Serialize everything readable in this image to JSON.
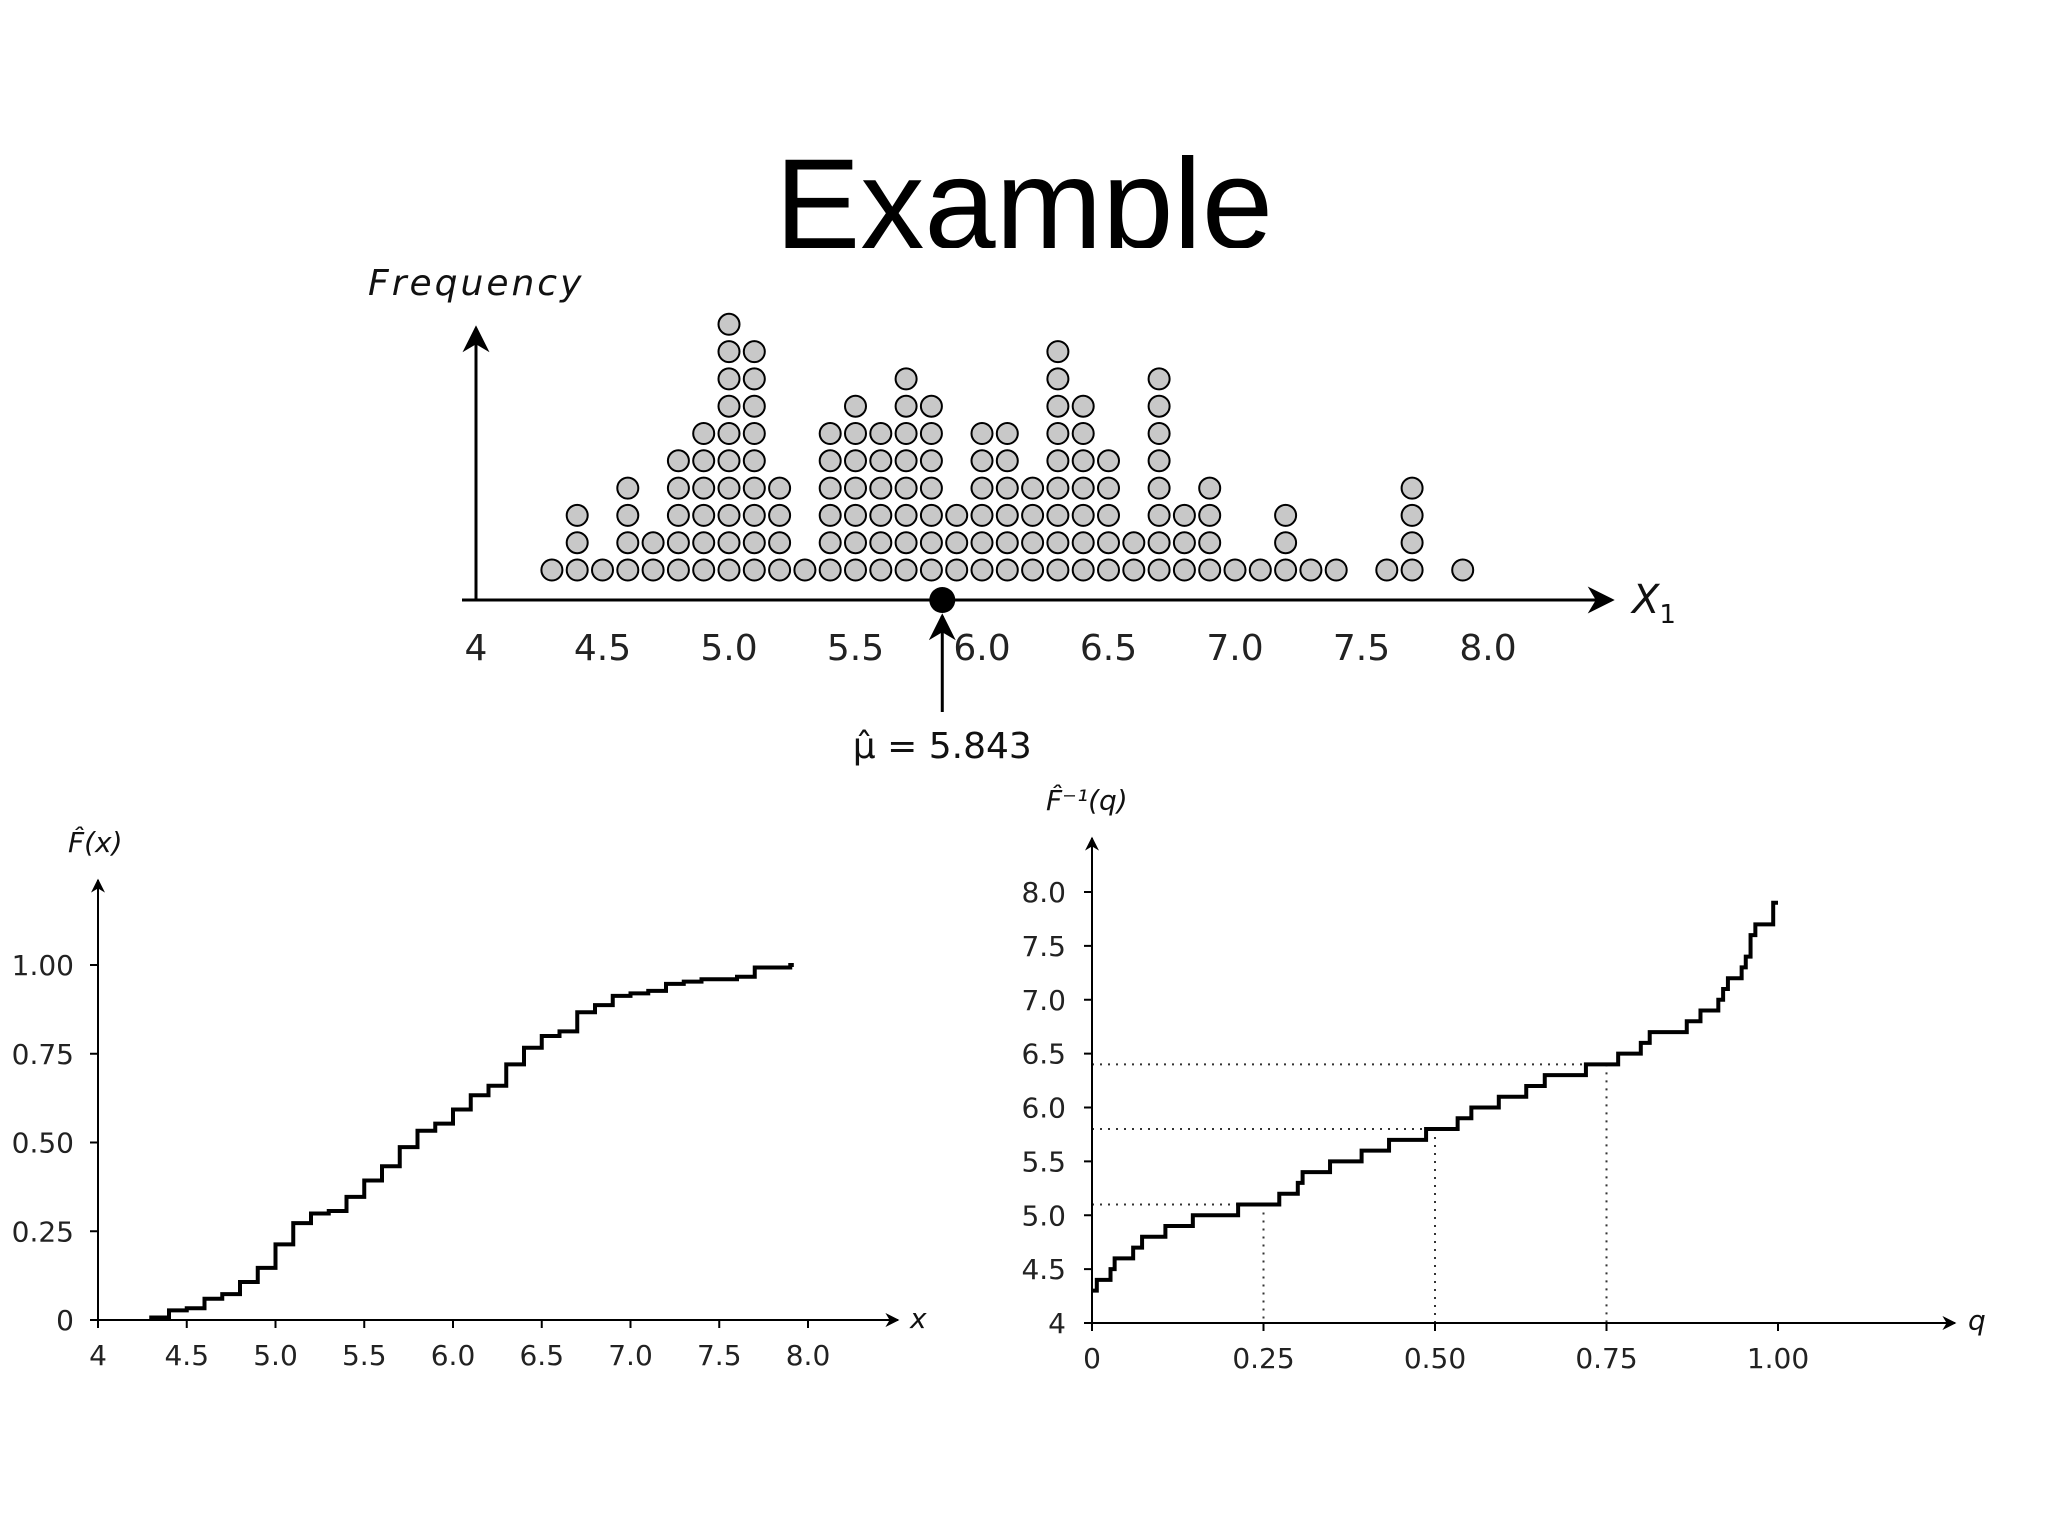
{
  "slide": {
    "title": "Example"
  },
  "colors": {
    "dot_fill": "#c8c8c8",
    "stroke": "#000000",
    "guide": "#333333"
  },
  "chart_data": [
    {
      "type": "scatter",
      "subtype": "dot plot",
      "title": "",
      "ylabel": "Frequency",
      "xlabel": "X",
      "xlabel_subscript": "1",
      "xlim": [
        4,
        8.5
      ],
      "xticks": [
        "4",
        "4.5",
        "5.0",
        "5.5",
        "6.0",
        "6.5",
        "7.0",
        "7.5",
        "8.0"
      ],
      "xtick_values": [
        4,
        4.5,
        5.0,
        5.5,
        6.0,
        6.5,
        7.0,
        7.5,
        8.0
      ],
      "grid": false,
      "stacks": [
        {
          "x": 4.3,
          "count": 1
        },
        {
          "x": 4.4,
          "count": 3
        },
        {
          "x": 4.5,
          "count": 1
        },
        {
          "x": 4.6,
          "count": 4
        },
        {
          "x": 4.7,
          "count": 2
        },
        {
          "x": 4.8,
          "count": 5
        },
        {
          "x": 4.9,
          "count": 6
        },
        {
          "x": 5.0,
          "count": 10
        },
        {
          "x": 5.1,
          "count": 9
        },
        {
          "x": 5.2,
          "count": 4
        },
        {
          "x": 5.3,
          "count": 1
        },
        {
          "x": 5.4,
          "count": 6
        },
        {
          "x": 5.5,
          "count": 7
        },
        {
          "x": 5.6,
          "count": 6
        },
        {
          "x": 5.7,
          "count": 8
        },
        {
          "x": 5.8,
          "count": 7
        },
        {
          "x": 5.9,
          "count": 3
        },
        {
          "x": 6.0,
          "count": 6
        },
        {
          "x": 6.1,
          "count": 6
        },
        {
          "x": 6.2,
          "count": 4
        },
        {
          "x": 6.3,
          "count": 9
        },
        {
          "x": 6.4,
          "count": 7
        },
        {
          "x": 6.5,
          "count": 5
        },
        {
          "x": 6.6,
          "count": 2
        },
        {
          "x": 6.7,
          "count": 8
        },
        {
          "x": 6.8,
          "count": 3
        },
        {
          "x": 6.9,
          "count": 4
        },
        {
          "x": 7.0,
          "count": 1
        },
        {
          "x": 7.1,
          "count": 1
        },
        {
          "x": 7.2,
          "count": 3
        },
        {
          "x": 7.3,
          "count": 1
        },
        {
          "x": 7.4,
          "count": 1
        },
        {
          "x": 7.6,
          "count": 1
        },
        {
          "x": 7.7,
          "count": 4
        },
        {
          "x": 7.9,
          "count": 1
        }
      ],
      "mean": {
        "value": 5.843,
        "label": "μ̂ = 5.843"
      }
    },
    {
      "type": "line",
      "subtype": "step (empirical CDF)",
      "title": "",
      "ylabel": "F̂(x)",
      "xlabel": "x",
      "xlim": [
        4,
        8.5
      ],
      "ylim": [
        0,
        1.2
      ],
      "xticks": [
        "4",
        "4.5",
        "5.0",
        "5.5",
        "6.0",
        "6.5",
        "7.0",
        "7.5",
        "8.0"
      ],
      "xtick_values": [
        4,
        4.5,
        5.0,
        5.5,
        6.0,
        6.5,
        7.0,
        7.5,
        8.0
      ],
      "yticks": [
        "0",
        "0.25",
        "0.50",
        "0.75",
        "1.00"
      ],
      "ytick_values": [
        0,
        0.25,
        0.5,
        0.75,
        1.0
      ],
      "grid": false,
      "x": [
        4.3,
        4.4,
        4.5,
        4.6,
        4.7,
        4.8,
        4.9,
        5.0,
        5.1,
        5.2,
        5.3,
        5.4,
        5.5,
        5.6,
        5.7,
        5.8,
        5.9,
        6.0,
        6.1,
        6.2,
        6.3,
        6.4,
        6.5,
        6.6,
        6.7,
        6.8,
        6.9,
        7.0,
        7.1,
        7.2,
        7.3,
        7.4,
        7.6,
        7.7,
        7.9
      ],
      "y": [
        0.007,
        0.027,
        0.033,
        0.06,
        0.073,
        0.107,
        0.147,
        0.213,
        0.273,
        0.3,
        0.307,
        0.347,
        0.393,
        0.433,
        0.487,
        0.533,
        0.553,
        0.593,
        0.633,
        0.66,
        0.72,
        0.767,
        0.8,
        0.813,
        0.867,
        0.887,
        0.913,
        0.92,
        0.927,
        0.947,
        0.953,
        0.96,
        0.967,
        0.993,
        1.0
      ]
    },
    {
      "type": "line",
      "subtype": "step (empirical quantile function)",
      "title": "",
      "ylabel": "F̂⁻¹(q)",
      "xlabel": "q",
      "xlim": [
        0,
        1.2
      ],
      "ylim": [
        4,
        8.5
      ],
      "xticks": [
        "0",
        "0.25",
        "0.50",
        "0.75",
        "1.00"
      ],
      "xtick_values": [
        0,
        0.25,
        0.5,
        0.75,
        1.0
      ],
      "yticks": [
        "4",
        "4.5",
        "5.0",
        "5.5",
        "6.0",
        "6.5",
        "7.0",
        "7.5",
        "8.0"
      ],
      "ytick_values": [
        4,
        4.5,
        5.0,
        5.5,
        6.0,
        6.5,
        7.0,
        7.5,
        8.0
      ],
      "grid": false,
      "quartile_guides": [
        {
          "q": 0.25,
          "value": 5.1
        },
        {
          "q": 0.5,
          "value": 5.8
        },
        {
          "q": 0.75,
          "value": 6.4
        }
      ]
    }
  ]
}
